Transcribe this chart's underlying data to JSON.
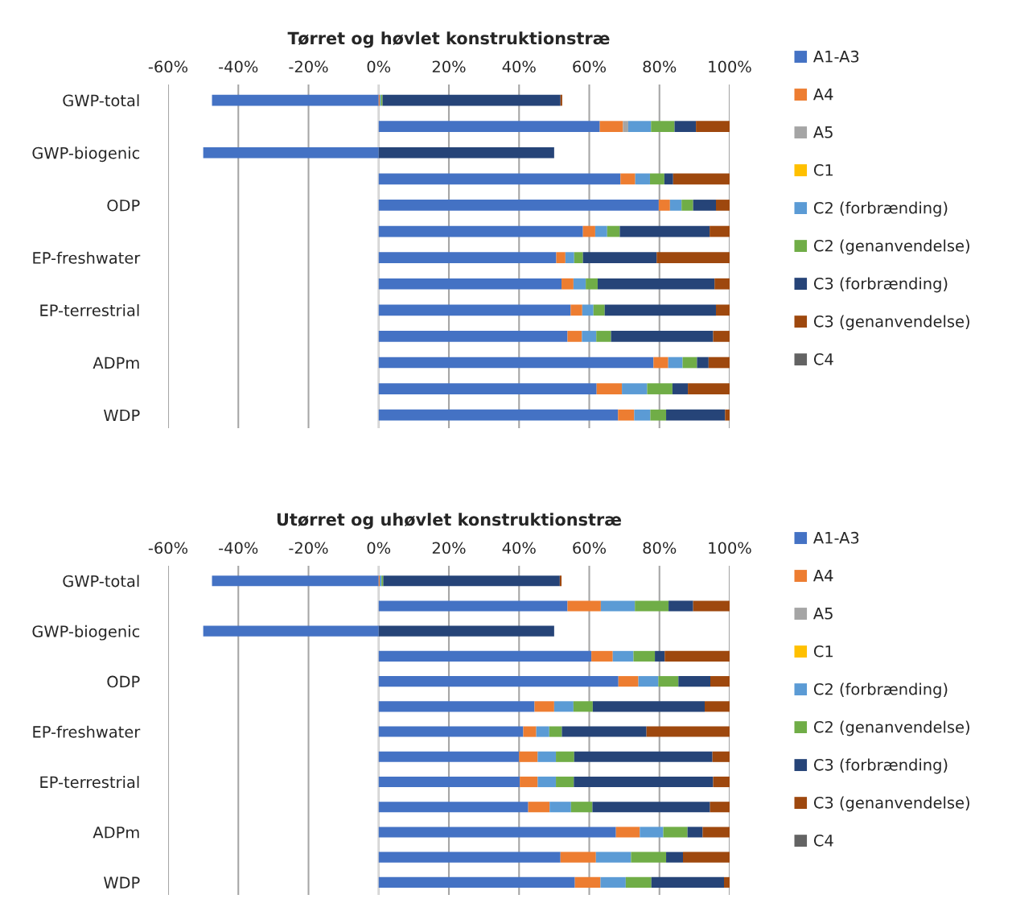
{
  "chart_data": [
    {
      "type": "bar",
      "orientation": "horizontal",
      "stacked": true,
      "title": "Tørret og høvlet konstruktionstræ",
      "categories": [
        "GWP-total",
        null,
        "GWP-biogenic",
        null,
        "ODP",
        null,
        "EP-freshwater",
        null,
        "EP-terrestrial",
        null,
        "ADPm",
        null,
        "WDP"
      ],
      "xlim": [
        -60,
        100
      ],
      "xticks": [
        {
          "value": -60,
          "label": "-60%"
        },
        {
          "value": -40,
          "label": "-40%"
        },
        {
          "value": -20,
          "label": "-20%"
        },
        {
          "value": 0,
          "label": "0%"
        },
        {
          "value": 20,
          "label": "20%"
        },
        {
          "value": 40,
          "label": "40%"
        },
        {
          "value": 60,
          "label": "60%"
        },
        {
          "value": 80,
          "label": "80%"
        },
        {
          "value": 100,
          "label": "100%"
        }
      ],
      "grid": "x",
      "legend": "right",
      "series": [
        {
          "name": "A1-A3",
          "color": "#4472c4",
          "values": [
            -47.5,
            63.0,
            -50,
            68.9,
            79.8,
            58.2,
            50.6,
            52.1,
            54.7,
            53.8,
            78.3,
            62.1,
            68.2
          ]
        },
        {
          "name": "A4",
          "color": "#ed7d31",
          "values": [
            0.3,
            6.6,
            0,
            4.2,
            3.2,
            3.5,
            2.6,
            3.4,
            3.3,
            4.1,
            4.2,
            7.2,
            4.6
          ]
        },
        {
          "name": "A5",
          "color": "#a5a5a5",
          "values": [
            0,
            1.5,
            0,
            0,
            0,
            0,
            0,
            0,
            0,
            0,
            0,
            0,
            0
          ]
        },
        {
          "name": "C1",
          "color": "#ffc000",
          "values": [
            0,
            0,
            0,
            0,
            0,
            0,
            0,
            0,
            0,
            0,
            0,
            0,
            0
          ]
        },
        {
          "name": "C2 (forbrænding)",
          "color": "#5b9bd5",
          "values": [
            0.3,
            6.5,
            0,
            4.2,
            3.3,
            3.4,
            2.5,
            3.5,
            3.2,
            4.1,
            4.1,
            7.2,
            4.6
          ]
        },
        {
          "name": "C2 (genanvendelse)",
          "color": "#70ad47",
          "values": [
            0.5,
            6.7,
            0,
            4.1,
            3.3,
            3.6,
            2.5,
            3.4,
            3.2,
            4.2,
            4.1,
            7.2,
            4.5
          ]
        },
        {
          "name": "C3 (forbrænding)",
          "color": "#264478",
          "values": [
            50.7,
            6.1,
            50,
            2.5,
            6.5,
            25.6,
            21.0,
            33.3,
            31.7,
            29.1,
            3.3,
            4.4,
            16.8
          ]
        },
        {
          "name": "C3 (genanvendelse)",
          "color": "#9e480e",
          "values": [
            0.5,
            9.6,
            0,
            16.1,
            3.9,
            5.7,
            20.8,
            4.3,
            3.9,
            4.7,
            6.0,
            11.9,
            1.3
          ]
        },
        {
          "name": "C4",
          "color": "#636363",
          "values": [
            0,
            0,
            0,
            0,
            0,
            0,
            0,
            0,
            0,
            0,
            0,
            0,
            0
          ]
        }
      ]
    },
    {
      "type": "bar",
      "orientation": "horizontal",
      "stacked": true,
      "title": "Utørret og uhøvlet konstruktionstræ",
      "categories": [
        "GWP-total",
        null,
        "GWP-biogenic",
        null,
        "ODP",
        null,
        "EP-freshwater",
        null,
        "EP-terrestrial",
        null,
        "ADPm",
        null,
        "WDP"
      ],
      "xlim": [
        -60,
        100
      ],
      "xticks": [
        {
          "value": -60,
          "label": "-60%"
        },
        {
          "value": -40,
          "label": "-40%"
        },
        {
          "value": -20,
          "label": "-20%"
        },
        {
          "value": 0,
          "label": "0%"
        },
        {
          "value": 20,
          "label": "20%"
        },
        {
          "value": 40,
          "label": "40%"
        },
        {
          "value": 60,
          "label": "60%"
        },
        {
          "value": 80,
          "label": "80%"
        },
        {
          "value": 100,
          "label": "100%"
        }
      ],
      "grid": "x",
      "legend": "right",
      "series": [
        {
          "name": "A1-A3",
          "color": "#4472c4",
          "values": [
            -47.5,
            53.8,
            -50,
            60.6,
            68.3,
            44.4,
            41.2,
            40.0,
            40.2,
            42.6,
            67.6,
            51.8,
            55.9
          ]
        },
        {
          "name": "A4",
          "color": "#ed7d31",
          "values": [
            0.3,
            9.5,
            0,
            6.1,
            5.7,
            5.6,
            3.7,
            5.3,
            5.1,
            6.1,
            6.8,
            10.1,
            7.3
          ]
        },
        {
          "name": "A5",
          "color": "#a5a5a5",
          "values": [
            0,
            0,
            0,
            0,
            0,
            0,
            0,
            0,
            0,
            0,
            0,
            0,
            0
          ]
        },
        {
          "name": "C1",
          "color": "#ffc000",
          "values": [
            0,
            0,
            0,
            0,
            0,
            0,
            0,
            0,
            0,
            0,
            0,
            0,
            0
          ]
        },
        {
          "name": "C2 (forbrænding)",
          "color": "#5b9bd5",
          "values": [
            0.5,
            9.7,
            0,
            5.9,
            5.7,
            5.5,
            3.7,
            5.2,
            5.2,
            6.1,
            6.7,
            10.0,
            7.2
          ]
        },
        {
          "name": "C2 (genanvendelse)",
          "color": "#70ad47",
          "values": [
            0.5,
            9.6,
            0,
            6.1,
            5.7,
            5.5,
            3.6,
            5.2,
            5.1,
            6.1,
            6.9,
            10.0,
            7.3
          ]
        },
        {
          "name": "C3 (forbrænding)",
          "color": "#264478",
          "values": [
            50.3,
            7.0,
            50,
            2.8,
            9.1,
            31.9,
            24.1,
            39.4,
            39.7,
            33.5,
            4.3,
            4.8,
            20.7
          ]
        },
        {
          "name": "C3 (genanvendelse)",
          "color": "#9e480e",
          "values": [
            0.5,
            10.4,
            0,
            18.5,
            5.5,
            7.1,
            23.7,
            4.9,
            4.7,
            5.6,
            7.7,
            13.3,
            1.6
          ]
        },
        {
          "name": "C4",
          "color": "#636363",
          "values": [
            0,
            0,
            0,
            0,
            0,
            0,
            0,
            0,
            0,
            0,
            0,
            0,
            0
          ]
        }
      ]
    }
  ]
}
